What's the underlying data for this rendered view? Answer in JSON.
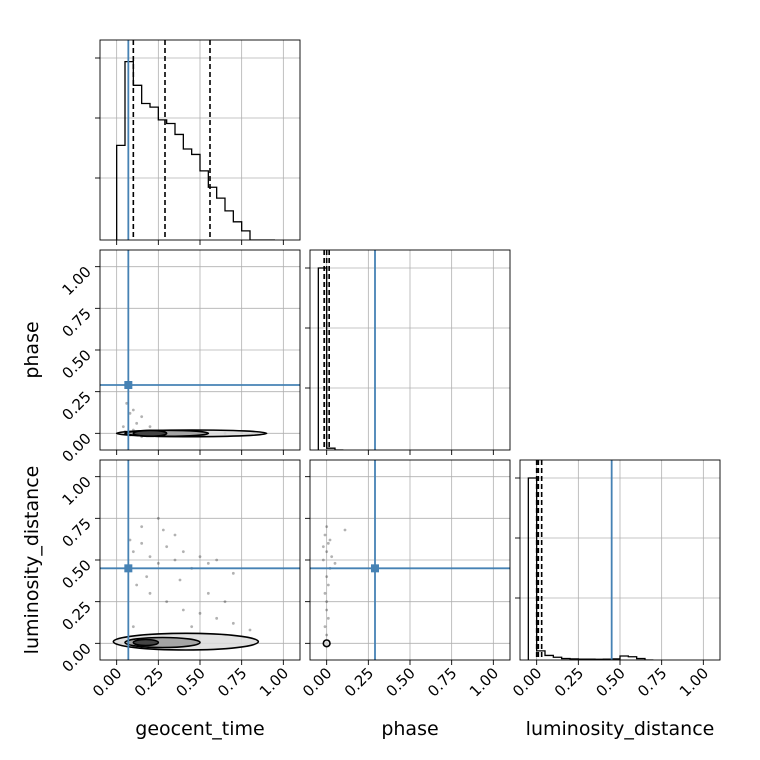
{
  "chart_data": {
    "type": "corner",
    "parameters": [
      "geocent_time",
      "phase",
      "luminosity_distance"
    ],
    "axis_range": [
      -0.1,
      1.1
    ],
    "tick_values": [
      0,
      0.25,
      0.5,
      0.75,
      1
    ],
    "tick_labels": [
      "0.00",
      "0.25",
      "0.50",
      "0.75",
      "1.00"
    ],
    "grid": true,
    "truth_color": "#4682b4",
    "truths": {
      "geocent_time": 0.07,
      "phase": 0.29,
      "luminosity_distance": 0.45
    },
    "histograms": [
      {
        "parameter": "geocent_time",
        "bin_edges": [
          0.0,
          0.05,
          0.1,
          0.15,
          0.2,
          0.25,
          0.3,
          0.35,
          0.4,
          0.45,
          0.5,
          0.55,
          0.6,
          0.65,
          0.7,
          0.75,
          0.8,
          0.85,
          0.9,
          0.95
        ],
        "counts": [
          0.52,
          0.98,
          0.85,
          0.75,
          0.73,
          0.66,
          0.64,
          0.58,
          0.5,
          0.47,
          0.38,
          0.29,
          0.23,
          0.16,
          0.1,
          0.05,
          0.0,
          0.0,
          0.0
        ],
        "quantile_lines": [
          0.1,
          0.29,
          0.56
        ]
      },
      {
        "parameter": "phase",
        "bin_edges": [
          -0.05,
          0.0,
          0.05,
          0.1
        ],
        "counts": [
          1.0,
          0.01,
          0.0
        ],
        "quantile_lines": [
          -0.015,
          0.0,
          0.015
        ]
      },
      {
        "parameter": "luminosity_distance",
        "bin_edges": [
          -0.05,
          0.0,
          0.05,
          0.1,
          0.15,
          0.2,
          0.25,
          0.3,
          0.35,
          0.4,
          0.45,
          0.5,
          0.55,
          0.6,
          0.65,
          0.7
        ],
        "counts": [
          1.0,
          0.05,
          0.025,
          0.015,
          0.008,
          0.006,
          0.005,
          0.005,
          0.004,
          0.005,
          0.006,
          0.022,
          0.018,
          0.008,
          0.0
        ],
        "quantile_lines": [
          0.0,
          0.01,
          0.03
        ]
      }
    ],
    "scatter": [
      {
        "x_param": "geocent_time",
        "y_param": "phase",
        "points": [
          [
            0.02,
            0.0
          ],
          [
            0.05,
            0.01
          ],
          [
            0.08,
            -0.01
          ],
          [
            0.1,
            0.02
          ],
          [
            0.12,
            0.0
          ],
          [
            0.15,
            -0.02
          ],
          [
            0.2,
            0.01
          ],
          [
            0.25,
            0.0
          ],
          [
            0.3,
            -0.01
          ],
          [
            0.35,
            0.0
          ],
          [
            0.45,
            0.01
          ],
          [
            0.55,
            0.0
          ],
          [
            0.65,
            0.0
          ],
          [
            0.75,
            0.0
          ],
          [
            0.85,
            0.0
          ],
          [
            0.15,
            0.1
          ],
          [
            0.08,
            0.12
          ],
          [
            0.12,
            0.06
          ],
          [
            0.06,
            0.18
          ],
          [
            0.2,
            0.04
          ],
          [
            0.1,
            0.14
          ],
          [
            0.04,
            0.04
          ]
        ]
      },
      {
        "x_param": "geocent_time",
        "y_param": "luminosity_distance",
        "points": [
          [
            0.1,
            0.55
          ],
          [
            0.15,
            0.6
          ],
          [
            0.2,
            0.52
          ],
          [
            0.25,
            0.48
          ],
          [
            0.3,
            0.58
          ],
          [
            0.35,
            0.5
          ],
          [
            0.4,
            0.55
          ],
          [
            0.45,
            0.45
          ],
          [
            0.5,
            0.52
          ],
          [
            0.55,
            0.48
          ],
          [
            0.6,
            0.5
          ],
          [
            0.7,
            0.42
          ],
          [
            0.12,
            0.35
          ],
          [
            0.2,
            0.3
          ],
          [
            0.3,
            0.25
          ],
          [
            0.4,
            0.2
          ],
          [
            0.5,
            0.18
          ],
          [
            0.6,
            0.15
          ],
          [
            0.7,
            0.12
          ],
          [
            0.8,
            0.08
          ],
          [
            0.15,
            0.7
          ],
          [
            0.25,
            0.75
          ],
          [
            0.35,
            0.65
          ],
          [
            0.1,
            0.1
          ],
          [
            0.2,
            0.05
          ],
          [
            0.45,
            0.1
          ],
          [
            0.08,
            0.62
          ],
          [
            0.18,
            0.4
          ],
          [
            0.28,
            0.68
          ],
          [
            0.55,
            0.3
          ],
          [
            0.65,
            0.25
          ],
          [
            0.38,
            0.38
          ]
        ]
      },
      {
        "x_param": "phase",
        "y_param": "luminosity_distance",
        "points": [
          [
            0.0,
            0.7
          ],
          [
            -0.01,
            0.65
          ],
          [
            0.01,
            0.6
          ],
          [
            0.0,
            0.55
          ],
          [
            -0.02,
            0.5
          ],
          [
            0.02,
            0.45
          ],
          [
            0.0,
            0.4
          ],
          [
            0.01,
            0.35
          ],
          [
            -0.01,
            0.3
          ],
          [
            0.0,
            0.25
          ],
          [
            0.0,
            0.2
          ],
          [
            0.01,
            0.15
          ],
          [
            -0.01,
            0.1
          ],
          [
            0.0,
            0.05
          ],
          [
            0.0,
            0.0
          ],
          [
            0.02,
            0.62
          ],
          [
            -0.02,
            0.58
          ],
          [
            0.03,
            0.52
          ],
          [
            0.11,
            0.68
          ],
          [
            0.05,
            0.48
          ]
        ]
      }
    ],
    "contours": [
      {
        "x_param": "geocent_time",
        "y_param": "phase",
        "levels": [
          {
            "x": [
              0.0,
              0.9
            ],
            "y": [
              -0.02,
              0.02
            ]
          },
          {
            "x": [
              0.05,
              0.55
            ],
            "y": [
              -0.015,
              0.015
            ]
          },
          {
            "x": [
              0.1,
              0.3
            ],
            "y": [
              -0.01,
              0.01
            ]
          }
        ]
      },
      {
        "x_param": "geocent_time",
        "y_param": "luminosity_distance",
        "levels": [
          {
            "x": [
              -0.02,
              0.85
            ],
            "y": [
              -0.04,
              0.06
            ]
          },
          {
            "x": [
              0.05,
              0.5
            ],
            "y": [
              -0.025,
              0.035
            ]
          },
          {
            "x": [
              0.1,
              0.25
            ],
            "y": [
              -0.01,
              0.02
            ]
          }
        ]
      },
      {
        "x_param": "phase",
        "y_param": "luminosity_distance",
        "levels": [
          {
            "x": [
              -0.02,
              0.02
            ],
            "y": [
              -0.02,
              0.02
            ]
          }
        ]
      }
    ]
  }
}
